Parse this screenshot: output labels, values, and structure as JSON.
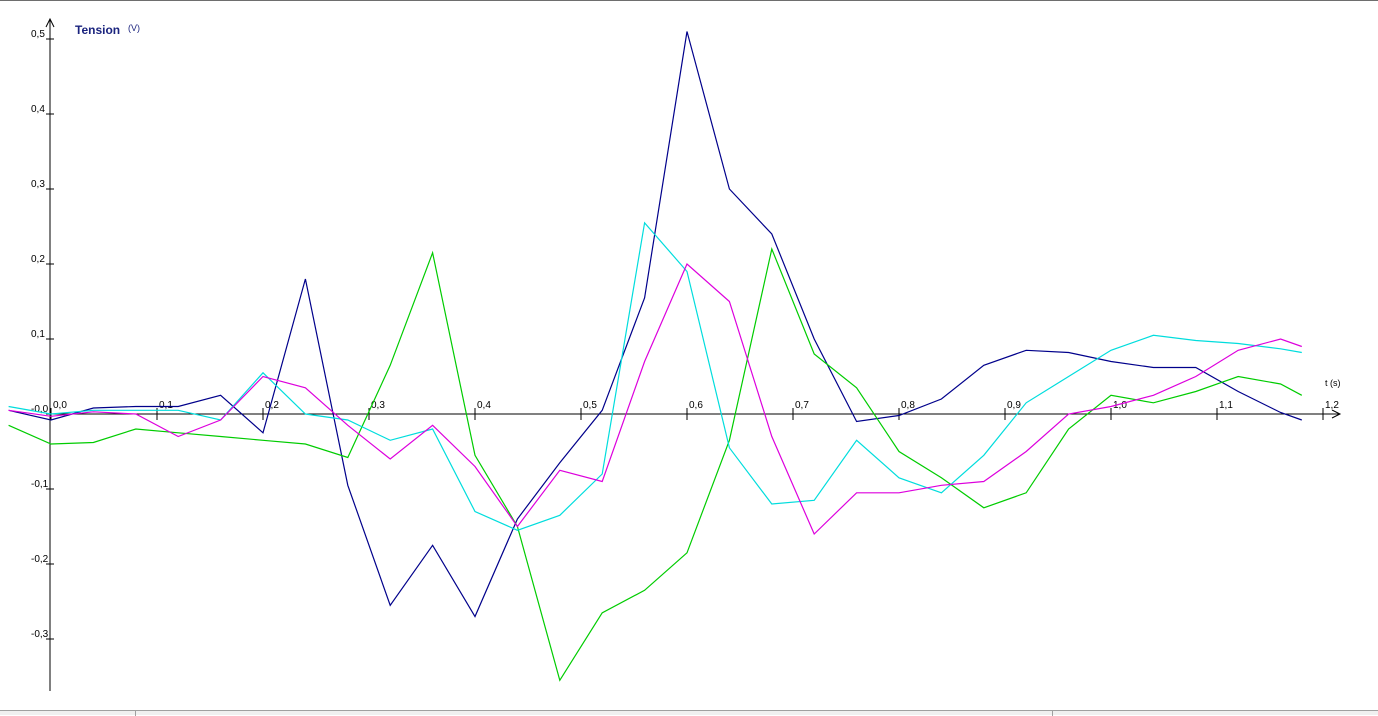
{
  "chart_data": {
    "type": "line",
    "title": "Tension",
    "title_unit": "(V)",
    "xlabel": "t (s)",
    "ylabel": "Tension (V)",
    "xlim": [
      -0.04,
      1.2
    ],
    "ylim": [
      -0.37,
      0.52
    ],
    "grid": false,
    "legend": "none",
    "x_ticks": [
      0.0,
      0.1,
      0.2,
      0.3,
      0.4,
      0.5,
      0.6,
      0.7,
      0.8,
      0.9,
      1.0,
      1.1,
      1.2
    ],
    "x_tick_labels": [
      "0,0",
      "0,1",
      "0,2",
      "0,3",
      "0,4",
      "0,5",
      "0,6",
      "0,7",
      "0,8",
      "0,9",
      "1,0",
      "1,1",
      "1,2"
    ],
    "y_ticks": [
      -0.3,
      -0.2,
      -0.1,
      0.0,
      0.1,
      0.2,
      0.3,
      0.4,
      0.5
    ],
    "y_tick_labels": [
      "-0,3",
      "-0,2",
      "-0,1",
      "-0,0",
      "0,1",
      "0,2",
      "0,3",
      "0,4",
      "0,5"
    ],
    "series": [
      {
        "color": "#00008b",
        "points": [
          [
            -0.04,
            0.005
          ],
          [
            0.0,
            -0.008
          ],
          [
            0.04,
            0.008
          ],
          [
            0.08,
            0.01
          ],
          [
            0.12,
            0.01
          ],
          [
            0.16,
            0.025
          ],
          [
            0.2,
            -0.025
          ],
          [
            0.24,
            0.18
          ],
          [
            0.28,
            -0.095
          ],
          [
            0.32,
            -0.255
          ],
          [
            0.36,
            -0.175
          ],
          [
            0.4,
            -0.27
          ],
          [
            0.44,
            -0.14
          ],
          [
            0.48,
            -0.065
          ],
          [
            0.52,
            0.005
          ],
          [
            0.56,
            0.155
          ],
          [
            0.6,
            0.51
          ],
          [
            0.64,
            0.3
          ],
          [
            0.68,
            0.24
          ],
          [
            0.72,
            0.1
          ],
          [
            0.76,
            -0.01
          ],
          [
            0.8,
            -0.002
          ],
          [
            0.84,
            0.02
          ],
          [
            0.88,
            0.065
          ],
          [
            0.92,
            0.085
          ],
          [
            0.96,
            0.082
          ],
          [
            1.0,
            0.07
          ],
          [
            1.04,
            0.062
          ],
          [
            1.08,
            0.062
          ],
          [
            1.12,
            0.03
          ],
          [
            1.16,
            0.002
          ],
          [
            1.18,
            -0.008
          ]
        ]
      },
      {
        "color": "#00cc00",
        "points": [
          [
            -0.04,
            -0.015
          ],
          [
            0.0,
            -0.04
          ],
          [
            0.04,
            -0.038
          ],
          [
            0.08,
            -0.02
          ],
          [
            0.12,
            -0.025
          ],
          [
            0.16,
            -0.03
          ],
          [
            0.2,
            -0.035
          ],
          [
            0.24,
            -0.04
          ],
          [
            0.28,
            -0.058
          ],
          [
            0.32,
            0.065
          ],
          [
            0.36,
            0.215
          ],
          [
            0.4,
            -0.055
          ],
          [
            0.44,
            -0.15
          ],
          [
            0.48,
            -0.355
          ],
          [
            0.52,
            -0.265
          ],
          [
            0.56,
            -0.235
          ],
          [
            0.6,
            -0.185
          ],
          [
            0.64,
            -0.035
          ],
          [
            0.68,
            0.22
          ],
          [
            0.72,
            0.08
          ],
          [
            0.76,
            0.035
          ],
          [
            0.8,
            -0.05
          ],
          [
            0.84,
            -0.085
          ],
          [
            0.88,
            -0.125
          ],
          [
            0.92,
            -0.105
          ],
          [
            0.96,
            -0.02
          ],
          [
            1.0,
            0.025
          ],
          [
            1.04,
            0.015
          ],
          [
            1.08,
            0.03
          ],
          [
            1.12,
            0.05
          ],
          [
            1.16,
            0.04
          ],
          [
            1.18,
            0.025
          ]
        ]
      },
      {
        "color": "#00dddd",
        "points": [
          [
            -0.04,
            0.01
          ],
          [
            0.0,
            0.0
          ],
          [
            0.04,
            0.005
          ],
          [
            0.08,
            0.005
          ],
          [
            0.12,
            0.005
          ],
          [
            0.16,
            -0.008
          ],
          [
            0.2,
            0.055
          ],
          [
            0.24,
            0.0
          ],
          [
            0.28,
            -0.008
          ],
          [
            0.32,
            -0.035
          ],
          [
            0.36,
            -0.02
          ],
          [
            0.4,
            -0.13
          ],
          [
            0.44,
            -0.155
          ],
          [
            0.48,
            -0.135
          ],
          [
            0.52,
            -0.08
          ],
          [
            0.56,
            0.255
          ],
          [
            0.6,
            0.19
          ],
          [
            0.64,
            -0.045
          ],
          [
            0.68,
            -0.12
          ],
          [
            0.72,
            -0.115
          ],
          [
            0.76,
            -0.035
          ],
          [
            0.8,
            -0.085
          ],
          [
            0.84,
            -0.105
          ],
          [
            0.88,
            -0.055
          ],
          [
            0.92,
            0.015
          ],
          [
            0.96,
            0.05
          ],
          [
            1.0,
            0.085
          ],
          [
            1.04,
            0.105
          ],
          [
            1.08,
            0.098
          ],
          [
            1.12,
            0.094
          ],
          [
            1.16,
            0.087
          ],
          [
            1.18,
            0.082
          ]
        ]
      },
      {
        "color": "#dd00dd",
        "points": [
          [
            -0.04,
            0.005
          ],
          [
            0.0,
            -0.003
          ],
          [
            0.04,
            0.003
          ],
          [
            0.08,
            0.0
          ],
          [
            0.12,
            -0.03
          ],
          [
            0.16,
            -0.008
          ],
          [
            0.2,
            0.05
          ],
          [
            0.24,
            0.035
          ],
          [
            0.28,
            -0.015
          ],
          [
            0.32,
            -0.06
          ],
          [
            0.36,
            -0.015
          ],
          [
            0.4,
            -0.07
          ],
          [
            0.44,
            -0.15
          ],
          [
            0.48,
            -0.075
          ],
          [
            0.52,
            -0.09
          ],
          [
            0.56,
            0.07
          ],
          [
            0.6,
            0.2
          ],
          [
            0.64,
            0.15
          ],
          [
            0.68,
            -0.03
          ],
          [
            0.72,
            -0.16
          ],
          [
            0.76,
            -0.105
          ],
          [
            0.8,
            -0.105
          ],
          [
            0.84,
            -0.095
          ],
          [
            0.88,
            -0.09
          ],
          [
            0.92,
            -0.05
          ],
          [
            0.96,
            0.0
          ],
          [
            1.0,
            0.01
          ],
          [
            1.04,
            0.025
          ],
          [
            1.08,
            0.05
          ],
          [
            1.12,
            0.085
          ],
          [
            1.16,
            0.1
          ],
          [
            1.18,
            0.09
          ]
        ]
      }
    ]
  }
}
